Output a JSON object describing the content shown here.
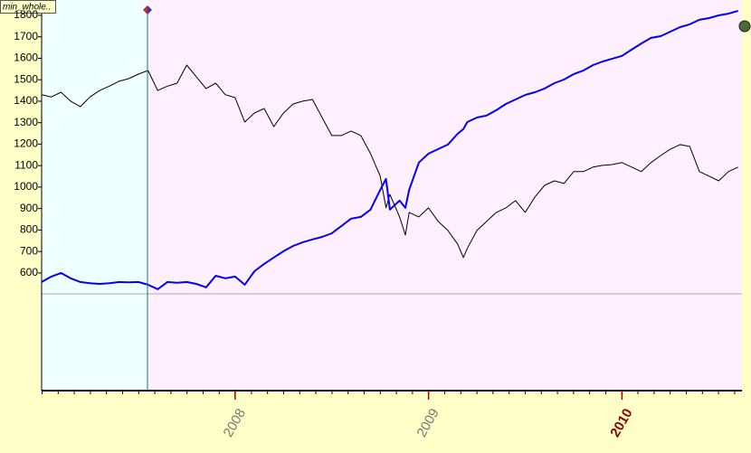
{
  "label": "min_whole..",
  "chart_data": {
    "type": "line",
    "x": [
      2007.0,
      2007.05,
      2007.1,
      2007.15,
      2007.2,
      2007.25,
      2007.3,
      2007.35,
      2007.4,
      2007.45,
      2007.5,
      2007.55,
      2007.6,
      2007.65,
      2007.7,
      2007.75,
      2007.8,
      2007.85,
      2007.9,
      2007.95,
      2008.0,
      2008.05,
      2008.1,
      2008.15,
      2008.2,
      2008.25,
      2008.3,
      2008.35,
      2008.4,
      2008.45,
      2008.5,
      2008.55,
      2008.6,
      2008.65,
      2008.7,
      2008.75,
      2008.78,
      2008.8,
      2008.85,
      2008.88,
      2008.9,
      2008.95,
      2009.0,
      2009.05,
      2009.1,
      2009.15,
      2009.18,
      2009.2,
      2009.25,
      2009.3,
      2009.35,
      2009.4,
      2009.45,
      2009.5,
      2009.55,
      2009.6,
      2009.65,
      2009.7,
      2009.75,
      2009.8,
      2009.85,
      2009.9,
      2009.95,
      2010.0,
      2010.05,
      2010.1,
      2010.15,
      2010.2,
      2010.25,
      2010.3,
      2010.35,
      2010.4,
      2010.45,
      2010.5,
      2010.55,
      2010.6
    ],
    "series": [
      {
        "color": "#000000",
        "values": [
          1430,
          1420,
          1442,
          1400,
          1375,
          1420,
          1450,
          1470,
          1493,
          1505,
          1526,
          1543,
          1450,
          1470,
          1484,
          1568,
          1514,
          1459,
          1484,
          1430,
          1417,
          1303,
          1345,
          1366,
          1282,
          1345,
          1387,
          1400,
          1408,
          1324,
          1240,
          1240,
          1261,
          1240,
          1156,
          1051,
          903,
          966,
          861,
          777,
          882,
          861,
          903,
          840,
          798,
          735,
          672,
          714,
          798,
          840,
          882,
          903,
          937,
          882,
          954,
          1008,
          1029,
          1017,
          1072,
          1072,
          1093,
          1101,
          1105,
          1114,
          1093,
          1072,
          1114,
          1147,
          1177,
          1198,
          1189,
          1072,
          1051,
          1029,
          1072,
          1093
        ]
      },
      {
        "color": "#0000ff",
        "values": [
          558,
          583,
          600,
          575,
          558,
          552,
          549,
          552,
          558,
          556,
          558,
          545,
          524,
          558,
          554,
          558,
          549,
          533,
          587,
          575,
          583,
          545,
          608,
          642,
          672,
          701,
          726,
          743,
          756,
          768,
          785,
          819,
          853,
          861,
          895,
          987,
          1038,
          895,
          937,
          903,
          987,
          1114,
          1156,
          1177,
          1198,
          1248,
          1270,
          1303,
          1324,
          1333,
          1358,
          1387,
          1408,
          1429,
          1442,
          1459,
          1484,
          1501,
          1526,
          1543,
          1568,
          1585,
          1598,
          1611,
          1640,
          1669,
          1695,
          1703,
          1724,
          1745,
          1758,
          1779,
          1787,
          1800,
          1808,
          1821
        ]
      }
    ],
    "xlim": [
      2007.0,
      2010.62
    ],
    "ylim": [
      52,
      1863
    ],
    "xticks": [
      2008,
      2009,
      2010
    ],
    "yticks": [
      600,
      700,
      800,
      900,
      1000,
      1100,
      1200,
      1300,
      1400,
      1500,
      1600,
      1700,
      1800
    ]
  }
}
